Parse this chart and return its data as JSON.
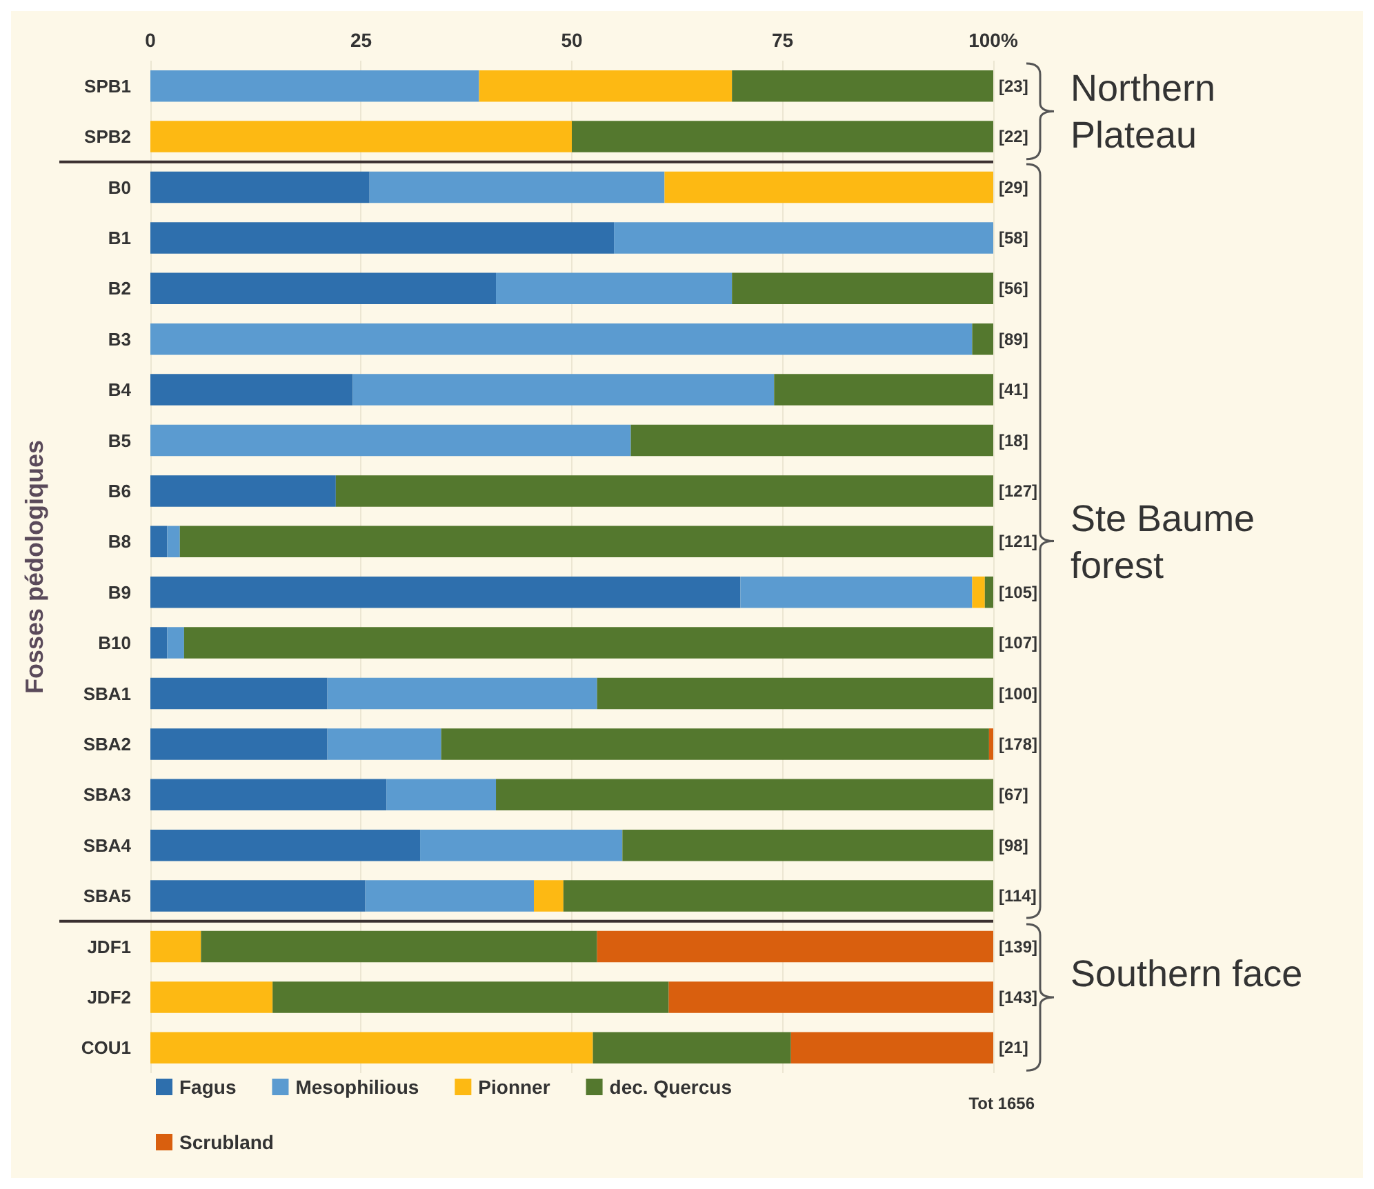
{
  "chart_data": {
    "type": "bar",
    "orientation": "horizontal",
    "stacked": true,
    "ylabel": "Fosses pédologiques",
    "categories": [
      "SPB1",
      "SPB2",
      "B0",
      "B1",
      "B2",
      "B3",
      "B4",
      "B5",
      "B6",
      "B8",
      "B9",
      "B10",
      "SBA1",
      "SBA2",
      "SBA3",
      "SBA4",
      "SBA5",
      "JDF1",
      "JDF2",
      "COU1"
    ],
    "series": [
      {
        "name": "Fagus",
        "color": "#2e6fad",
        "values": [
          null,
          null,
          26,
          55,
          41,
          null,
          24,
          null,
          22,
          2,
          70,
          2,
          21,
          21,
          28,
          32,
          25.5,
          null,
          null,
          null
        ]
      },
      {
        "name": "Mesophilious",
        "color": "#5b9bd0",
        "values": [
          39,
          null,
          35,
          45,
          28,
          97.5,
          50,
          57,
          null,
          1.5,
          27.5,
          2,
          32,
          13.5,
          13,
          24,
          20,
          null,
          null,
          null
        ]
      },
      {
        "name": "Pionner",
        "color": "#fdb913",
        "values": [
          30,
          50,
          39,
          null,
          null,
          null,
          null,
          null,
          null,
          null,
          1.5,
          null,
          null,
          null,
          null,
          null,
          3.5,
          6,
          14.5,
          52.5
        ]
      },
      {
        "name": "dec. Quercus",
        "color": "#54782e",
        "values": [
          31,
          50,
          null,
          null,
          31,
          2.5,
          26,
          43,
          78,
          96.5,
          1,
          96,
          47,
          65,
          59,
          44,
          51,
          47,
          47,
          23.5
        ]
      },
      {
        "name": "Scrubland",
        "color": "#d95f0e",
        "values": [
          null,
          null,
          null,
          null,
          null,
          null,
          null,
          null,
          null,
          null,
          null,
          null,
          null,
          0.5,
          null,
          null,
          null,
          47,
          38.5,
          24
        ]
      }
    ],
    "xlim": [
      0,
      100
    ],
    "xticks": [
      0,
      25,
      50,
      75,
      {
        "value": 100,
        "label": "100%"
      }
    ],
    "grid": "x",
    "legend": "bottom left",
    "ref_lines": [
      {
        "axis": "y",
        "value": "SPB2",
        "color": "#3a3030"
      },
      {
        "axis": "y",
        "value": "SBA5",
        "color": "#3a3030"
      }
    ],
    "annotations": [
      "[23]",
      "[22]",
      "[29]",
      "[58]",
      "[56]",
      "[89]",
      "[41]",
      "[18]",
      "[127]",
      "[121]",
      "[105]",
      "[107]",
      "[100]",
      "[178]",
      "[67]",
      "[98]",
      "[114]",
      "[139]",
      "[143]",
      "[21]",
      "Northern Plateau",
      "Ste Baume forest",
      "Southern face",
      "Tot 1656"
    ]
  }
}
